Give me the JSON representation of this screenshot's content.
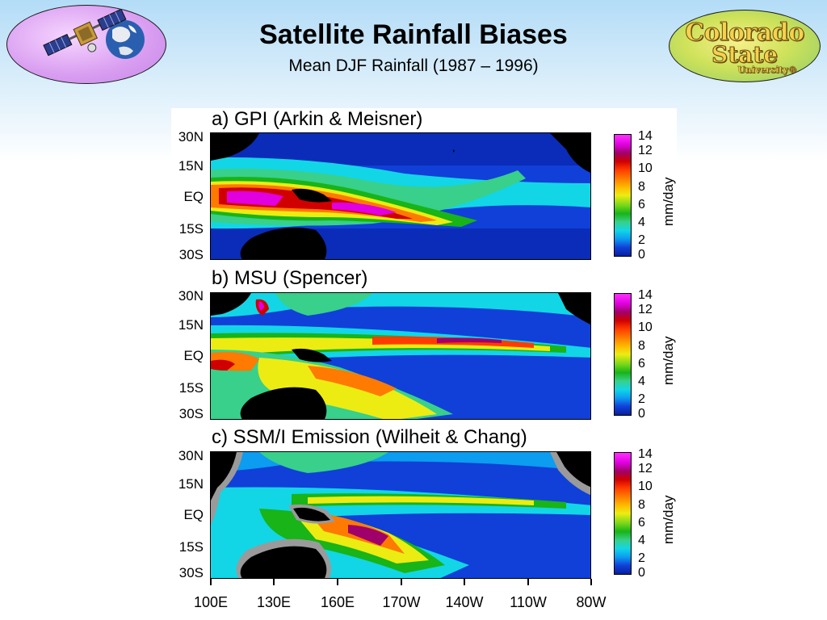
{
  "header": {
    "title": "Satellite Rainfall Biases",
    "subtitle": "Mean DJF Rainfall (1987 – 1996)"
  },
  "logos": {
    "left": {
      "icon": "satellite-earth-icon"
    },
    "right": {
      "line1": "Colorado",
      "line2": "State",
      "line3": "University®"
    }
  },
  "figure": {
    "panels": [
      {
        "title": "a) GPI (Arkin & Meisner)"
      },
      {
        "title": "b) MSU (Spencer)"
      },
      {
        "title": "c) SSM/I Emission (Wilheit & Chang)"
      }
    ],
    "lat_ticks": [
      "30N",
      "15N",
      "EQ",
      "15S",
      "30S"
    ],
    "lon_ticks": [
      "100E",
      "130E",
      "160E",
      "170W",
      "140W",
      "110W",
      "80W"
    ],
    "colorbar": {
      "ticks": [
        "14",
        "12",
        "10",
        "8",
        "6",
        "4",
        "2",
        "0"
      ],
      "unit": "mm/day"
    }
  }
}
